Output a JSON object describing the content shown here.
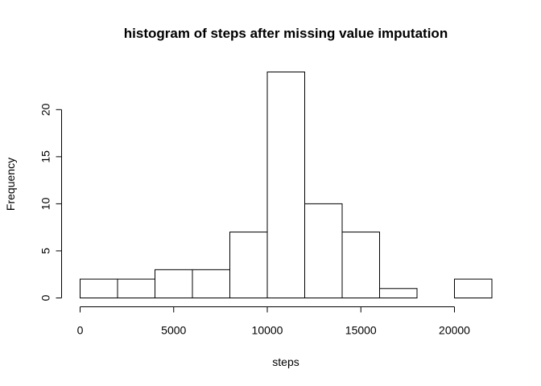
{
  "chart_data": {
    "type": "bar",
    "title": "histogram of steps after missing value imputation",
    "xlabel": "steps",
    "ylabel": "Frequency",
    "bin_edges": [
      0,
      2000,
      4000,
      6000,
      8000,
      10000,
      12000,
      14000,
      16000,
      18000,
      20000,
      22000
    ],
    "values": [
      2,
      2,
      3,
      3,
      7,
      24,
      10,
      7,
      1,
      0,
      2
    ],
    "x_ticks": [
      0,
      5000,
      10000,
      15000,
      20000
    ],
    "x_tick_labels": [
      "0",
      "5000",
      "10000",
      "15000",
      "20000"
    ],
    "y_ticks": [
      0,
      5,
      10,
      15,
      20
    ],
    "y_tick_labels": [
      "0",
      "5",
      "10",
      "15",
      "20"
    ],
    "xlim": [
      0,
      22000
    ],
    "ylim": [
      0,
      24
    ],
    "grid": false,
    "bar_fill": "#ffffff",
    "bar_stroke": "#000000"
  }
}
